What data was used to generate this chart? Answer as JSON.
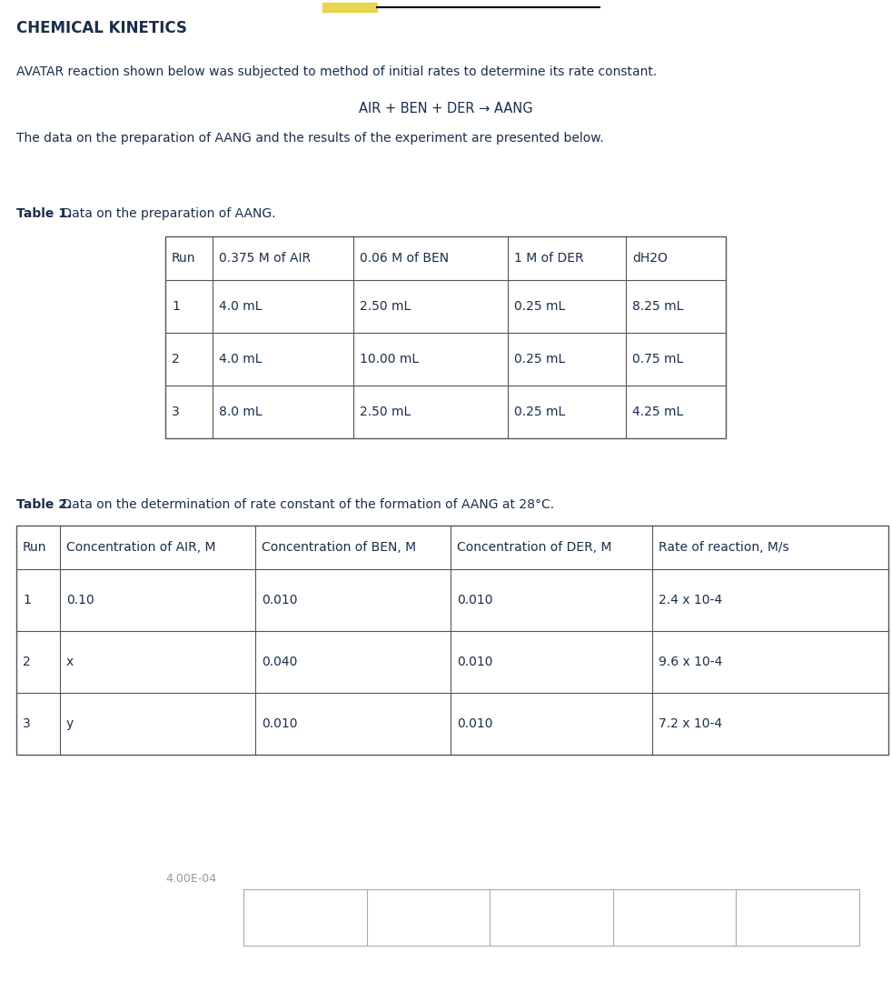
{
  "title": "CHEMICAL KINETICS",
  "title_color": "#1a2e4a",
  "title_fontsize": 12,
  "header_yellow_color": "#e8d44d",
  "intro_text": "AVATAR reaction shown below was subjected to method of initial rates to determine its rate constant.",
  "reaction_text": "AIR + BEN + DER → AANG",
  "data_text": "The data on the preparation of AANG and the results of the experiment are presented below.",
  "table1_bold": "Table 1.",
  "table1_desc": " Data on the preparation of AANG.",
  "table1_headers": [
    "Run",
    "0.375 M of AIR",
    "0.06 M of BEN",
    "1 M of DER",
    "dH2O"
  ],
  "table1_data": [
    [
      "1",
      "4.0 mL",
      "2.50 mL",
      "0.25 mL",
      "8.25 mL"
    ],
    [
      "2",
      "4.0 mL",
      "10.00 mL",
      "0.25 mL",
      "0.75 mL"
    ],
    [
      "3",
      "8.0 mL",
      "2.50 mL",
      "0.25 mL",
      "4.25 mL"
    ]
  ],
  "table2_bold": "Table 2.",
  "table2_desc": " Data on the determination of rate constant of the formation of AANG at 28°C.",
  "table2_headers": [
    "Run",
    "Concentration of AIR, M",
    "Concentration of BEN, M",
    "Concentration of DER, M",
    "Rate of reaction, M/s"
  ],
  "table2_data": [
    [
      "1",
      "0.10",
      "0.010",
      "0.010",
      "2.4 x 10-4"
    ],
    [
      "2",
      "x",
      "0.040",
      "0.010",
      "9.6 x 10-4"
    ],
    [
      "3",
      "y",
      "0.010",
      "0.010",
      "7.2 x 10-4"
    ]
  ],
  "extra_label": "4.00E-04",
  "text_color": "#1a2e4a",
  "table_text_color": "#1a2e4a",
  "bg_color": "#ffffff",
  "table_border_color": "#555555",
  "table_border_light": "#aaaaaa"
}
